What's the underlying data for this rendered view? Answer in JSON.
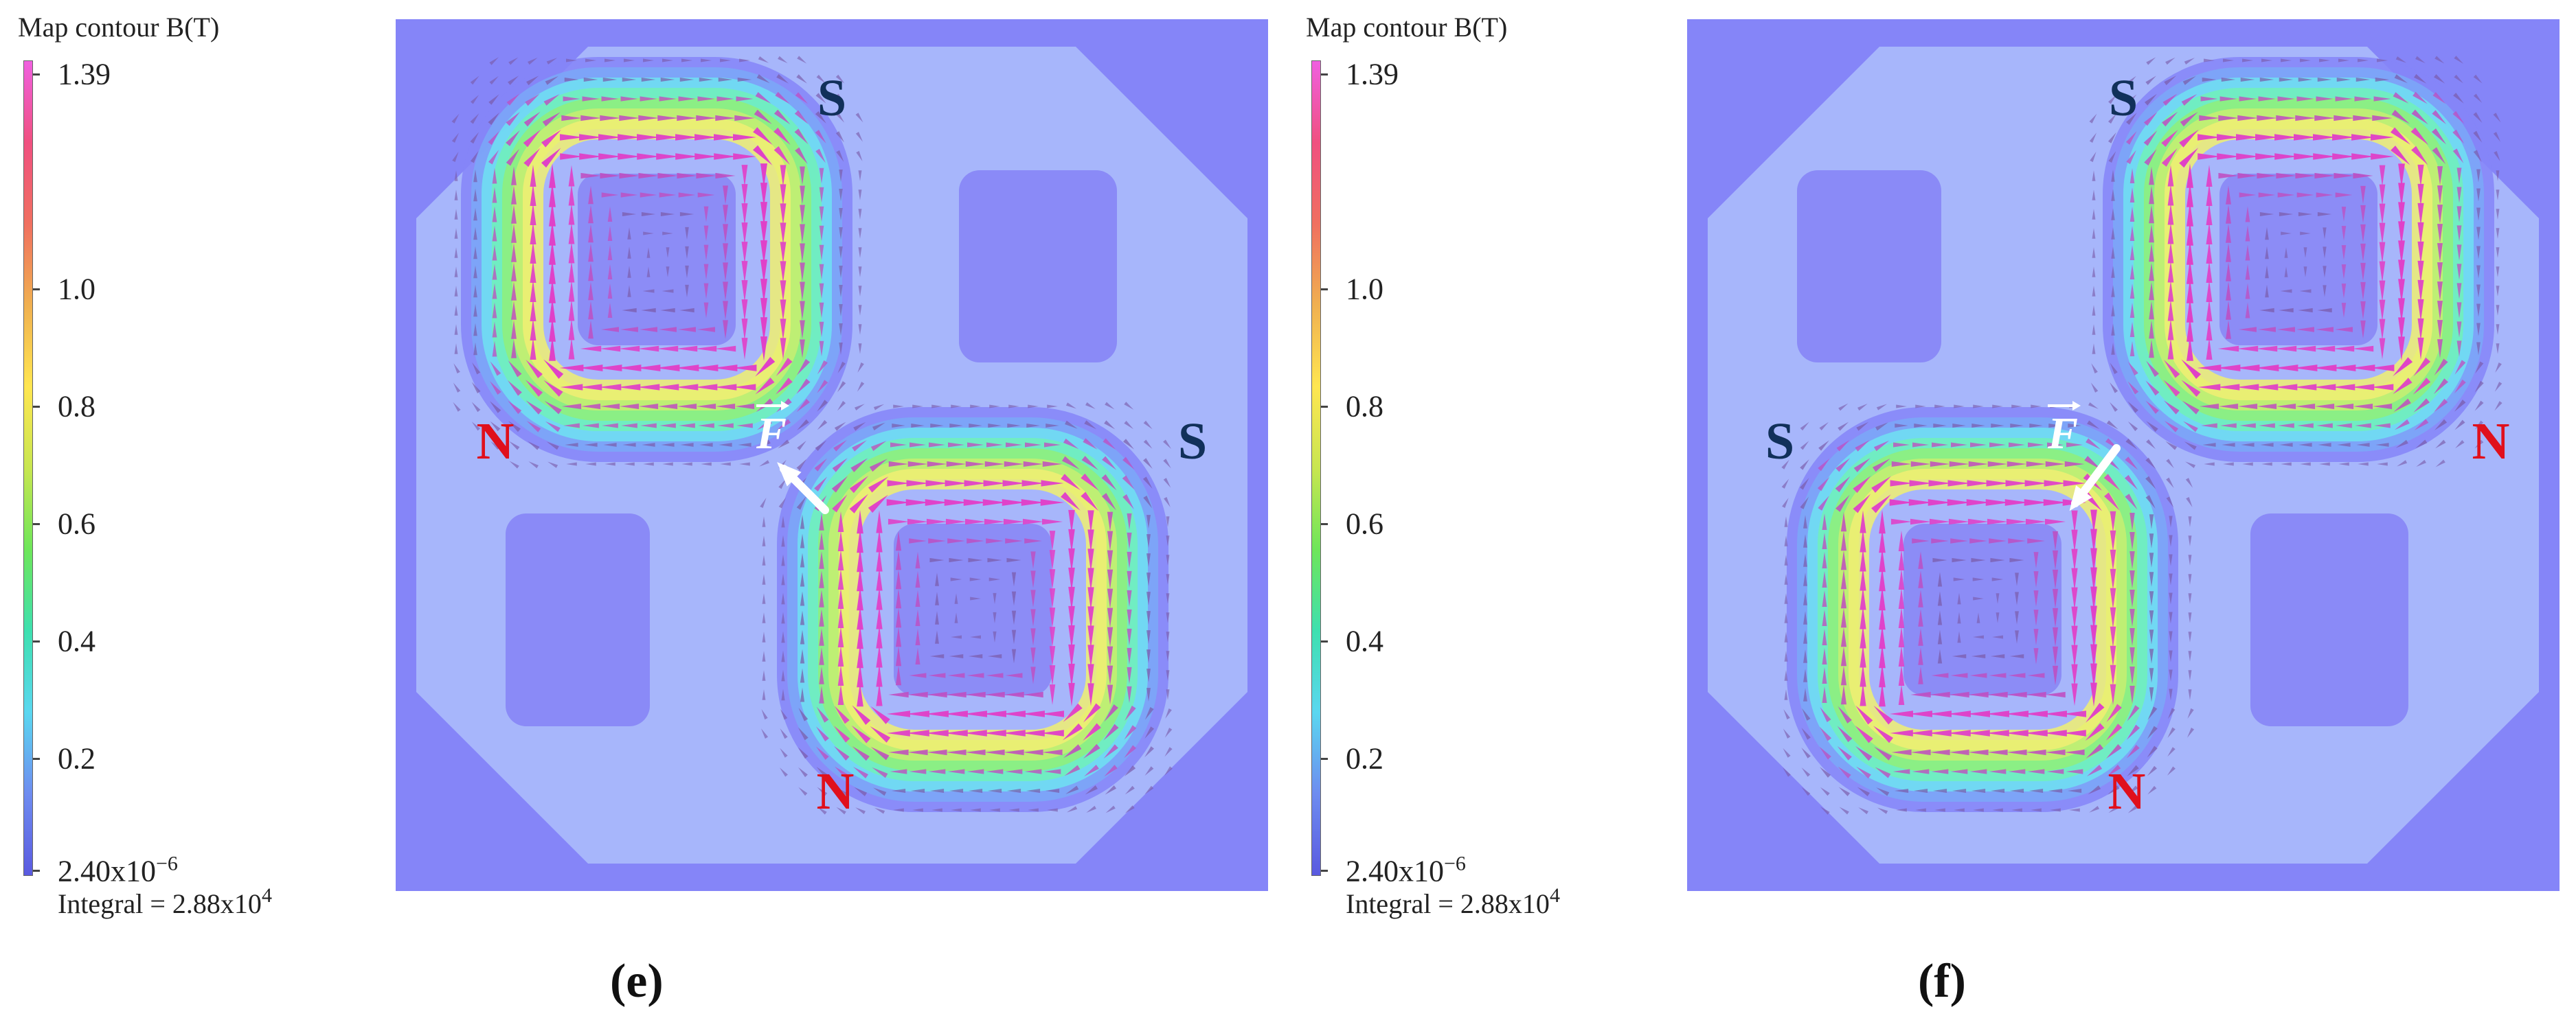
{
  "legend": {
    "title": "Map contour B(T)",
    "max_label": "1.39",
    "tick_labels": [
      "1.0",
      "0.8",
      "0.6",
      "0.4",
      "0.2"
    ],
    "tick_values": [
      1.0,
      0.8,
      0.6,
      0.4,
      0.2
    ],
    "min_label_base": "2.40x10",
    "min_label_exp": "−6",
    "integral_base": "Integral = 2.88x10",
    "integral_exp": "4",
    "min_value": 2.4e-06,
    "max_value": 1.39,
    "colors": [
      "#5a5ae0",
      "#6e8cf0",
      "#5ad7f0",
      "#3ee0b0",
      "#6ee65a",
      "#c8e650",
      "#ffe650",
      "#f0b050",
      "#f07060",
      "#f05080",
      "#f060e0"
    ]
  },
  "panels": [
    {
      "id": "e",
      "label": "(e)",
      "poles": {
        "top": "S",
        "left": "N",
        "right": "S",
        "bottom": "N"
      },
      "force_label": "F",
      "force_direction": "up-left"
    },
    {
      "id": "f",
      "label": "(f)",
      "poles": {
        "top": "S",
        "left": "S",
        "right": "N",
        "bottom": "N"
      },
      "force_label": "F",
      "force_direction": "down-left"
    }
  ],
  "colors": {
    "background": "#8585f8",
    "north_pole": "#e0101c",
    "south_pole": "#11305a",
    "arrow": "#e040c8",
    "force_arrow": "#ffffff"
  }
}
